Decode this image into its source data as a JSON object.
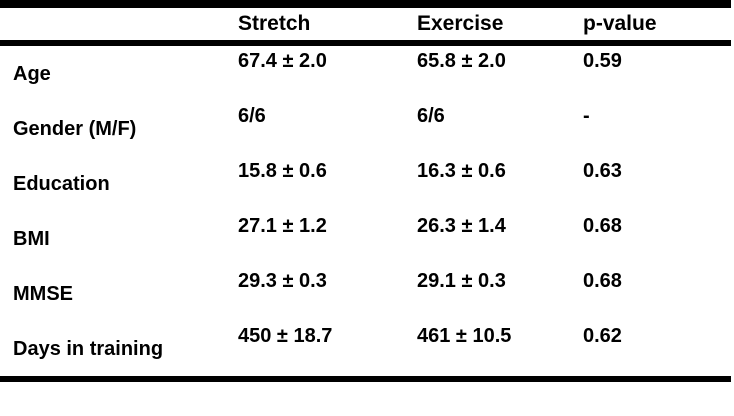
{
  "table": {
    "columns": [
      "",
      "Stretch",
      "Exercise",
      "p-value"
    ],
    "rows": [
      {
        "label": "Age",
        "stretch": "67.4 ± 2.0",
        "exercise": "65.8 ± 2.0",
        "p_value": "0.59"
      },
      {
        "label": "Gender (M/F)",
        "stretch": "6/6",
        "exercise": "6/6",
        "p_value": "-"
      },
      {
        "label": "Education",
        "stretch": "15.8 ± 0.6",
        "exercise": "16.3 ± 0.6",
        "p_value": "0.63"
      },
      {
        "label": "BMI",
        "stretch": "27.1 ± 1.2",
        "exercise": "26.3 ± 1.4",
        "p_value": "0.68"
      },
      {
        "label": "MMSE",
        "stretch": "29.3 ± 0.3",
        "exercise": "29.1 ± 0.3",
        "p_value": "0.68"
      },
      {
        "label": "Days in training",
        "stretch": "450 ± 18.7",
        "exercise": "461 ± 10.5",
        "p_value": "0.62"
      }
    ],
    "colors": {
      "text": "#000000",
      "background": "#ffffff",
      "rule": "#000000"
    }
  },
  "chart_data": {
    "type": "table",
    "title": "",
    "columns": [
      "",
      "Stretch",
      "Exercise",
      "p-value"
    ],
    "rows": [
      [
        "Age",
        "67.4 ± 2.0",
        "65.8 ± 2.0",
        "0.59"
      ],
      [
        "Gender (M/F)",
        "6/6",
        "6/6",
        "-"
      ],
      [
        "Education",
        "15.8 ± 0.6",
        "16.3 ± 0.6",
        "0.63"
      ],
      [
        "BMI",
        "27.1 ± 1.2",
        "26.3 ± 1.4",
        "0.68"
      ],
      [
        "MMSE",
        "29.3 ± 0.3",
        "29.1 ± 0.3",
        "0.68"
      ],
      [
        "Days in training",
        "450 ± 18.7",
        "461 ± 10.5",
        "0.62"
      ]
    ]
  }
}
